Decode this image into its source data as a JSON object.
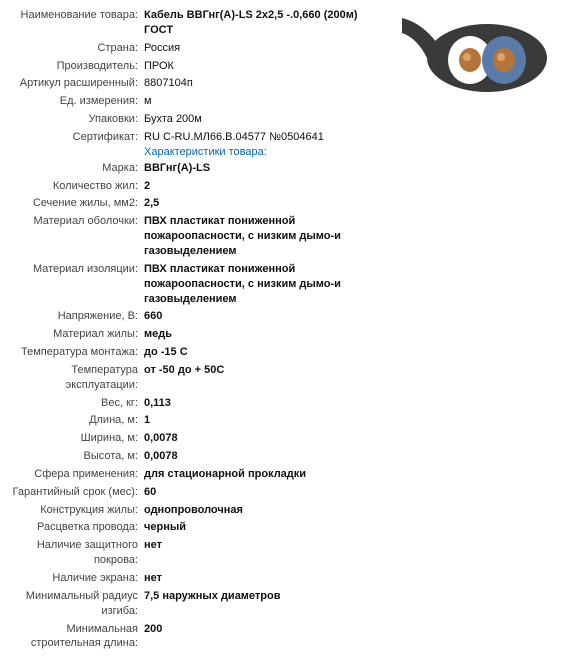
{
  "image": {
    "outer": "#3a3a3a",
    "inner1": "#ffffff",
    "inner2": "#5a7aa8",
    "core": "#b5753a"
  },
  "char_link": "Характеристики товара:",
  "rows": [
    {
      "label": "Наименование товара:",
      "value": "Кабель ВВГнг(А)-LS 2х2,5 -.0,660 (200м) ГОСТ",
      "bold": true
    },
    {
      "label": "Страна:",
      "value": "Россия"
    },
    {
      "label": "Производитель:",
      "value": "ПРОК"
    },
    {
      "label": "Артикул расширенный:",
      "value": "8807104п"
    },
    {
      "label": "Ед. измерения:",
      "value": "м"
    },
    {
      "label": "Упаковки:",
      "value": "Бухта 200м"
    },
    {
      "label": "Сертификат:",
      "value": "RU C-RU.МЛ66.В.04577 №0504641"
    },
    {
      "_link": true
    },
    {
      "label": "Марка:",
      "value": "ВВГнг(А)-LS",
      "bold": true
    },
    {
      "label": "Количество жил:",
      "value": "2",
      "bold": true
    },
    {
      "label": "Сечение жилы, мм2:",
      "value": "2,5",
      "bold": true
    },
    {
      "label": "Материал оболочки:",
      "value": "ПВХ пластикат пониженной пожароопасности, с низким дымо-и газовыделением",
      "bold": true
    },
    {
      "label": "Материал изоляции:",
      "value": "ПВХ пластикат пониженной пожароопасности, с низким дымо-и газовыделением",
      "bold": true
    },
    {
      "label": "Напряжение, В:",
      "value": "660",
      "bold": true
    },
    {
      "label": "Материал жилы:",
      "value": "медь",
      "bold": true
    },
    {
      "label": "Температура монтажа:",
      "value": "до -15 С",
      "bold": true
    },
    {
      "label": "Температура эксплуатации:",
      "value": "от -50 до + 50С",
      "bold": true
    },
    {
      "label": "Вес, кг:",
      "value": "0,113",
      "bold": true
    },
    {
      "label": "Длина, м:",
      "value": "1",
      "bold": true
    },
    {
      "label": "Ширина, м:",
      "value": "0,0078",
      "bold": true
    },
    {
      "label": "Высота, м:",
      "value": "0,0078",
      "bold": true
    },
    {
      "label": "Сфера применения:",
      "value": "для стационарной прокладки",
      "bold": true
    },
    {
      "label": "Гарантийный срок (мес):",
      "value": "60",
      "bold": true
    },
    {
      "label": "Конструкция жилы:",
      "value": "однопроволочная",
      "bold": true
    },
    {
      "label": "Расцветка провода:",
      "value": "черный",
      "bold": true
    },
    {
      "label": "Наличие защитного покрова:",
      "value": "нет",
      "bold": true
    },
    {
      "label": "Наличие экрана:",
      "value": "нет",
      "bold": true
    },
    {
      "label": "Минимальный радиус изгиба:",
      "value": "7,5 наружных диаметров",
      "bold": true
    },
    {
      "label": "Минимальная строительная длина:",
      "value": "200",
      "bold": true
    }
  ]
}
